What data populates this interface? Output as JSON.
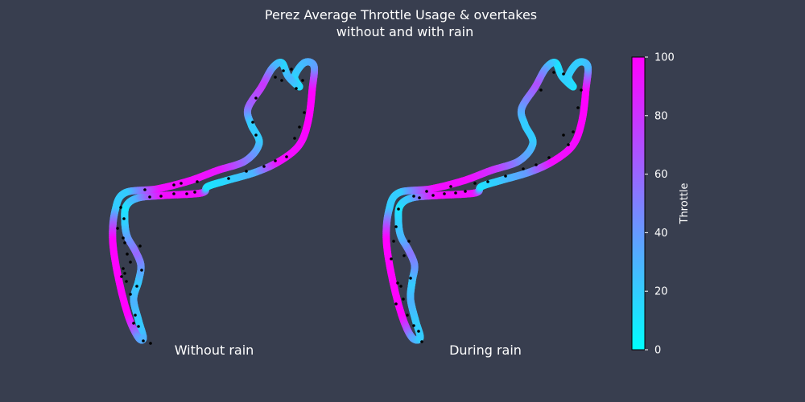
{
  "chart_data": {
    "type": "scatter",
    "title_line1": "Perez Average Throttle Usage & overtakes",
    "title_line2": "without and with rain",
    "colorbar": {
      "label": "Throttle",
      "min": 0,
      "max": 100,
      "ticks": [
        "0",
        "20",
        "40",
        "60",
        "80",
        "100"
      ],
      "color_low": "#00ffff",
      "color_high": "#ff00ff"
    },
    "background_color": "#383e4f",
    "overtake_marker_color": "#000000",
    "panels": [
      {
        "label": "Without rain",
        "track": [
          [
            178,
            420,
            30
          ],
          [
            172,
            398,
            20
          ],
          [
            166,
            372,
            30
          ],
          [
            172,
            350,
            20
          ],
          [
            175,
            330,
            40
          ],
          [
            168,
            312,
            60
          ],
          [
            158,
            294,
            40
          ],
          [
            155,
            275,
            20
          ],
          [
            157,
            256,
            10
          ],
          [
            172,
            246,
            30
          ],
          [
            205,
            243,
            95
          ],
          [
            250,
            240,
            95
          ],
          [
            258,
            232,
            10
          ],
          [
            280,
            225,
            15
          ],
          [
            318,
            214,
            30
          ],
          [
            348,
            200,
            95
          ],
          [
            372,
            180,
            95
          ],
          [
            383,
            150,
            100
          ],
          [
            388,
            110,
            100
          ],
          [
            390,
            82,
            40
          ],
          [
            378,
            78,
            30
          ],
          [
            366,
            95,
            20
          ],
          [
            372,
            108,
            10
          ],
          [
            358,
            95,
            30
          ],
          [
            350,
            78,
            15
          ],
          [
            338,
            85,
            30
          ],
          [
            325,
            108,
            80
          ],
          [
            308,
            135,
            60
          ],
          [
            312,
            155,
            20
          ],
          [
            322,
            178,
            20
          ],
          [
            305,
            200,
            50
          ],
          [
            270,
            212,
            90
          ],
          [
            235,
            225,
            95
          ],
          [
            195,
            235,
            95
          ],
          [
            155,
            240,
            20
          ],
          [
            143,
            262,
            20
          ],
          [
            140,
            300,
            100
          ],
          [
            148,
            350,
            100
          ],
          [
            160,
            395,
            100
          ],
          [
            172,
            420,
            40
          ]
        ],
        "overtakes": [
          [
            150,
            258
          ],
          [
            154,
            272
          ],
          [
            153,
            296
          ],
          [
            158,
            316
          ],
          [
            155,
            340
          ],
          [
            162,
            366
          ],
          [
            168,
            392
          ],
          [
            172,
            406
          ],
          [
            178,
            424
          ],
          [
            187,
            427
          ],
          [
            174,
            306
          ],
          [
            176,
            336
          ],
          [
            162,
            326
          ],
          [
            146,
            284
          ],
          [
            153,
            334
          ],
          [
            157,
            350
          ],
          [
            170,
            356
          ],
          [
            200,
            244
          ],
          [
            216,
            241
          ],
          [
            232,
            241
          ],
          [
            186,
            245
          ],
          [
            242,
            239
          ],
          [
            284,
            222
          ],
          [
            306,
            213
          ],
          [
            328,
            207
          ],
          [
            342,
            200
          ],
          [
            356,
            195
          ],
          [
            366,
            172
          ],
          [
            372,
            158
          ],
          [
            378,
            140
          ],
          [
            376,
            100
          ],
          [
            362,
            86
          ],
          [
            352,
            88
          ],
          [
            342,
            96
          ],
          [
            318,
            122
          ],
          [
            314,
            152
          ],
          [
            318,
            168
          ],
          [
            216,
            230
          ],
          [
            225,
            228
          ],
          [
            245,
            226
          ],
          [
            180,
            236
          ],
          [
            155,
            302
          ],
          [
            151,
            344
          ],
          [
            166,
            402
          ],
          [
            350,
            100
          ],
          [
            368,
            110
          ]
        ]
      },
      {
        "label": "During rain",
        "track": [
          [
            522,
            420,
            20
          ],
          [
            516,
            398,
            20
          ],
          [
            510,
            372,
            30
          ],
          [
            512,
            350,
            20
          ],
          [
            515,
            330,
            40
          ],
          [
            508,
            312,
            55
          ],
          [
            498,
            294,
            30
          ],
          [
            495,
            275,
            20
          ],
          [
            497,
            256,
            10
          ],
          [
            512,
            246,
            25
          ],
          [
            545,
            243,
            95
          ],
          [
            590,
            240,
            95
          ],
          [
            598,
            232,
            10
          ],
          [
            620,
            225,
            20
          ],
          [
            658,
            214,
            40
          ],
          [
            688,
            200,
            95
          ],
          [
            712,
            180,
            95
          ],
          [
            723,
            150,
            100
          ],
          [
            728,
            110,
            100
          ],
          [
            730,
            82,
            30
          ],
          [
            718,
            78,
            20
          ],
          [
            706,
            95,
            20
          ],
          [
            712,
            108,
            10
          ],
          [
            698,
            95,
            20
          ],
          [
            690,
            78,
            10
          ],
          [
            678,
            85,
            30
          ],
          [
            665,
            108,
            70
          ],
          [
            648,
            135,
            40
          ],
          [
            652,
            155,
            20
          ],
          [
            662,
            178,
            20
          ],
          [
            645,
            200,
            40
          ],
          [
            610,
            212,
            80
          ],
          [
            575,
            225,
            95
          ],
          [
            535,
            235,
            95
          ],
          [
            495,
            240,
            20
          ],
          [
            483,
            262,
            20
          ],
          [
            480,
            300,
            100
          ],
          [
            488,
            350,
            100
          ],
          [
            500,
            395,
            100
          ],
          [
            512,
            420,
            40
          ]
        ],
        "overtakes": [
          [
            495,
            260
          ],
          [
            494,
            352
          ],
          [
            498,
            356
          ],
          [
            501,
            372
          ],
          [
            506,
            392
          ],
          [
            514,
            405
          ],
          [
            520,
            412
          ],
          [
            524,
            425
          ],
          [
            502,
            318
          ],
          [
            489,
            300
          ],
          [
            492,
            282
          ],
          [
            521,
            246
          ],
          [
            538,
            243
          ],
          [
            552,
            241
          ],
          [
            566,
            240
          ],
          [
            578,
            238
          ],
          [
            606,
            226
          ],
          [
            628,
            219
          ],
          [
            650,
            210
          ],
          [
            666,
            205
          ],
          [
            682,
            196
          ],
          [
            706,
            180
          ],
          [
            712,
            164
          ],
          [
            718,
            134
          ],
          [
            722,
            112
          ],
          [
            700,
            92
          ],
          [
            688,
            90
          ],
          [
            672,
            112
          ],
          [
            508,
            300
          ],
          [
            514,
            244
          ],
          [
            530,
            238
          ],
          [
            560,
            232
          ],
          [
            590,
            228
          ],
          [
            700,
            168
          ],
          [
            486,
            322
          ],
          [
            492,
            378
          ],
          [
            510,
            346
          ]
        ]
      }
    ]
  }
}
